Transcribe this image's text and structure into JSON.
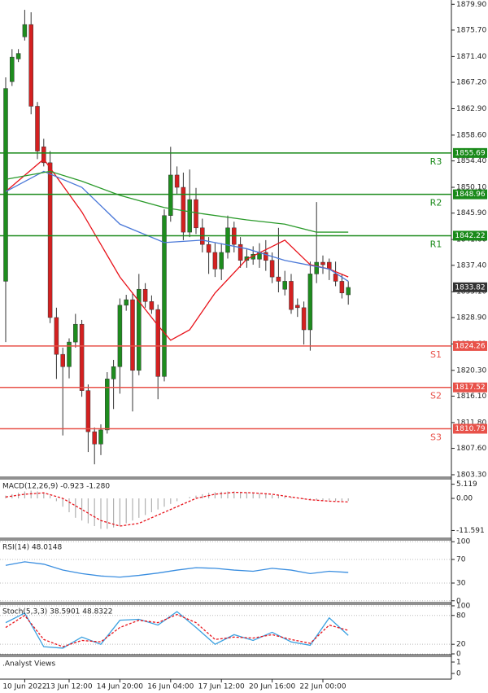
{
  "chart_data": [
    {
      "type": "candlestick",
      "open": [
        1834.8,
        1867.3,
        1871.0,
        1874.6,
        1876.6,
        1863.3,
        1856.7,
        1854.1,
        1828.9,
        1822.9,
        1820.9,
        1824.9,
        1827.8,
        1817.0,
        1810.3,
        1808.3,
        1810.6,
        1818.9,
        1820.9,
        1830.9,
        1831.8,
        1820.3,
        1833.5,
        1831.5,
        1830.2,
        1819.3,
        1845.5,
        1852.1,
        1850.1,
        1842.8,
        1848.1,
        1843.5,
        1840.8,
        1839.5,
        1836.8,
        1839.5,
        1843.5,
        1840.8,
        1838.2,
        1838.4,
        1838.4,
        1839.5,
        1838.2,
        1835.5,
        1833.5,
        1834.8,
        1830.9,
        1830.5,
        1826.9,
        1836.0,
        1837.9,
        1837.9,
        1836.0,
        1834.8,
        1832.6
      ],
      "high": [
        1868.0,
        1872.6,
        1872.6,
        1879.0,
        1878.6,
        1864.0,
        1858.0,
        1856.0,
        1830.5,
        1824.0,
        1825.5,
        1829.5,
        1828.5,
        1818.0,
        1811.0,
        1811.5,
        1820.0,
        1822.0,
        1832.0,
        1832.6,
        1833.0,
        1836.0,
        1834.5,
        1832.5,
        1831.0,
        1846.5,
        1856.7,
        1853.5,
        1852.5,
        1853.0,
        1850.0,
        1845.0,
        1842.0,
        1841.0,
        1841.0,
        1845.5,
        1844.5,
        1842.0,
        1840.0,
        1840.5,
        1841.0,
        1841.5,
        1839.5,
        1843.5,
        1836.5,
        1836.0,
        1832.0,
        1831.5,
        1838.0,
        1847.7,
        1839.0,
        1838.5,
        1838.0,
        1836.0,
        1834.8
      ],
      "low": [
        1824.9,
        1866.6,
        1870.5,
        1874.0,
        1862.0,
        1854.7,
        1853.5,
        1828.0,
        1818.9,
        1809.7,
        1819.0,
        1824.0,
        1816.0,
        1807.0,
        1805.0,
        1806.5,
        1810.0,
        1814.0,
        1816.5,
        1830.0,
        1813.6,
        1819.5,
        1830.5,
        1829.5,
        1815.6,
        1818.5,
        1844.5,
        1849.0,
        1841.5,
        1842.0,
        1842.5,
        1839.5,
        1836.0,
        1835.5,
        1835.0,
        1838.5,
        1839.5,
        1837.0,
        1837.0,
        1837.5,
        1837.0,
        1836.5,
        1834.5,
        1833.0,
        1832.5,
        1829.5,
        1829.0,
        1824.5,
        1823.5,
        1834.5,
        1836.0,
        1835.0,
        1834.0,
        1832.0,
        1831.0
      ],
      "close": [
        1866.2,
        1871.3,
        1871.9,
        1876.6,
        1863.3,
        1856.0,
        1854.1,
        1828.9,
        1822.9,
        1820.9,
        1824.9,
        1827.8,
        1817.0,
        1810.3,
        1808.3,
        1810.6,
        1818.9,
        1820.9,
        1830.9,
        1831.8,
        1820.3,
        1833.5,
        1831.5,
        1830.2,
        1819.3,
        1845.5,
        1852.1,
        1850.1,
        1842.8,
        1848.1,
        1843.5,
        1840.8,
        1839.5,
        1836.8,
        1839.5,
        1843.5,
        1840.8,
        1838.2,
        1838.8,
        1839.2,
        1839.5,
        1838.2,
        1835.5,
        1834.8,
        1834.8,
        1830.2,
        1830.5,
        1826.9,
        1836.0,
        1837.9,
        1837.5,
        1836.8,
        1834.8,
        1832.9,
        1833.8
      ],
      "up_color": "#1e8c1e",
      "down_color": "#d42020",
      "series": [
        {
          "color": "#e8131b",
          "x": [
            0,
            6,
            12,
            18,
            24,
            26,
            29,
            33,
            38,
            44,
            48,
            51,
            54
          ],
          "values": [
            1849.4,
            1854.7,
            1846.1,
            1835.5,
            1827.6,
            1825.2,
            1826.9,
            1832.9,
            1838.4,
            1841.5,
            1837.5,
            1836.8,
            1835.5
          ]
        },
        {
          "color": "#4a78d8",
          "x": [
            0,
            6,
            12,
            18,
            25,
            31,
            38,
            44,
            51,
            54
          ],
          "values": [
            1849.4,
            1852.7,
            1850.1,
            1844.1,
            1841.1,
            1841.5,
            1840.1,
            1838.2,
            1836.8,
            1834.8
          ]
        },
        {
          "color": "#2a9a2a",
          "x": [
            0,
            7,
            12,
            18,
            25,
            31,
            38,
            44,
            49,
            54
          ],
          "values": [
            1851.4,
            1852.7,
            1851.1,
            1848.8,
            1846.8,
            1845.8,
            1844.8,
            1844.1,
            1842.8,
            1842.8
          ]
        }
      ],
      "levels": [
        {
          "name": "R3",
          "value": 1855.69,
          "color": "#1a8a1a"
        },
        {
          "name": "R2",
          "value": 1848.96,
          "color": "#1a8a1a"
        },
        {
          "name": "R1",
          "value": 1842.22,
          "color": "#1a8a1a"
        },
        {
          "name": "S1",
          "value": 1824.26,
          "color": "#e8524a"
        },
        {
          "name": "S2",
          "value": 1817.52,
          "color": "#e8524a"
        },
        {
          "name": "S3",
          "value": 1810.79,
          "color": "#e8524a"
        }
      ],
      "last": 1833.82,
      "ylim": [
        1802.9,
        1880.6
      ],
      "yticks": [
        {
          "value": 1879.9,
          "label": "1879.90"
        },
        {
          "value": 1875.7,
          "label": "1875.70"
        },
        {
          "value": 1871.4,
          "label": "1871.40"
        },
        {
          "value": 1867.2,
          "label": "1867.20"
        },
        {
          "value": 1862.9,
          "label": "1862.90"
        },
        {
          "value": 1858.6,
          "label": "1858.60"
        },
        {
          "value": 1854.4,
          "label": "1854.40"
        },
        {
          "value": 1850.1,
          "label": "1850.10"
        },
        {
          "value": 1845.9,
          "label": "1845.90"
        },
        {
          "value": 1841.6,
          "label": "1841.60"
        },
        {
          "value": 1837.4,
          "label": "1837.40"
        },
        {
          "value": 1833.1,
          "label": "1833.10"
        },
        {
          "value": 1828.9,
          "label": "1828.90"
        },
        {
          "value": 1824.6,
          "label": "1824.60"
        },
        {
          "value": 1820.3,
          "label": "1820.30"
        },
        {
          "value": 1816.1,
          "label": "1816.10"
        },
        {
          "value": 1811.8,
          "label": "1811.80"
        },
        {
          "value": 1807.6,
          "label": "1807.60"
        },
        {
          "value": 1803.3,
          "label": "1803.30"
        }
      ],
      "xticks": [
        {
          "value": 3,
          "label": "10 Jun 2022"
        },
        {
          "value": 10,
          "label": "13 Jun 12:00"
        },
        {
          "value": 18,
          "label": "14 Jun 20:00"
        },
        {
          "value": 26,
          "label": "16 Jun 04:00"
        },
        {
          "value": 34,
          "label": "17 Jun 12:00"
        },
        {
          "value": 42,
          "label": "20 Jun 16:00"
        },
        {
          "value": 50,
          "label": "22 Jun 00:00"
        }
      ]
    },
    {
      "type": "macd",
      "title": "MACD(12,26,9) -0.923 -1.280",
      "histogram": [
        1,
        1.5,
        2,
        2.5,
        2.8,
        2.5,
        2,
        1,
        -1,
        -3,
        -5,
        -7,
        -8,
        -9,
        -10,
        -11,
        -11,
        -10.5,
        -10,
        -9,
        -8,
        -7,
        -6,
        -5,
        -4,
        -3,
        -2,
        -1,
        0,
        0.5,
        1,
        1.5,
        2,
        2.2,
        2.4,
        2.5,
        2.5,
        2.4,
        2.2,
        2,
        1.8,
        1.5,
        1.2,
        1,
        0.8,
        0.5,
        0,
        -0.3,
        -0.5,
        -0.6,
        -0.7,
        -0.8,
        -0.9,
        -0.9,
        -0.923
      ],
      "histogram_color": "#b0b0b0",
      "series": [
        {
          "color": "#e8131b",
          "dash": true,
          "x": [
            0,
            3,
            6,
            9,
            12,
            15,
            18,
            21,
            24,
            27,
            30,
            33,
            36,
            39,
            42,
            45,
            48,
            51,
            54
          ],
          "values": [
            0.5,
            1.5,
            2,
            0,
            -4,
            -8,
            -10,
            -9,
            -6,
            -3,
            0,
            1.5,
            2.2,
            2,
            1.5,
            0.5,
            -0.5,
            -1,
            -1.28
          ]
        }
      ],
      "ylim": [
        -14.4,
        7.06
      ],
      "yticks": [
        5.119,
        {
          "value": 0,
          "label": "0.00"
        },
        -11.591
      ]
    },
    {
      "type": "line",
      "title": "RSI(14) 48.0148",
      "grid": true,
      "series": [
        {
          "color": "#3a8ee0",
          "x": [
            0,
            3,
            6,
            9,
            12,
            15,
            18,
            21,
            24,
            27,
            30,
            33,
            36,
            39,
            42,
            45,
            48,
            51,
            54
          ],
          "values": [
            60,
            66,
            62,
            52,
            46,
            42,
            40,
            43,
            47,
            52,
            56,
            55,
            52,
            50,
            55,
            52,
            46,
            50,
            48.0148
          ]
        }
      ],
      "ylim": [
        -3.1,
        103.1
      ],
      "yticks": [
        100,
        70,
        30,
        0
      ]
    },
    {
      "type": "line",
      "title": "Stoch(5,3,3) 38.5901 48.8322",
      "grid": true,
      "series": [
        {
          "color": "#3aa0e0",
          "x": [
            0,
            3,
            6,
            9,
            12,
            15,
            18,
            21,
            24,
            27,
            30,
            33,
            36,
            39,
            42,
            45,
            48,
            51,
            54
          ],
          "values": [
            65,
            85,
            15,
            12,
            35,
            20,
            70,
            72,
            60,
            88,
            55,
            20,
            40,
            28,
            45,
            25,
            18,
            75,
            38.5901
          ]
        },
        {
          "color": "#e8131b",
          "dash": true,
          "x": [
            0,
            3,
            6,
            9,
            12,
            15,
            18,
            21,
            24,
            27,
            30,
            33,
            36,
            39,
            42,
            45,
            48,
            51,
            54
          ],
          "values": [
            55,
            80,
            30,
            15,
            28,
            25,
            55,
            70,
            65,
            82,
            65,
            30,
            35,
            33,
            40,
            30,
            22,
            60,
            48.8322
          ]
        }
      ],
      "ylim": [
        -1.7,
        103.3
      ],
      "yticks": [
        100,
        80,
        20,
        0
      ]
    },
    {
      "type": "blank",
      "title": ".Analyst Views",
      "ylim": [
        -0.5,
        1.5
      ],
      "yticks": [
        1,
        0
      ]
    }
  ]
}
